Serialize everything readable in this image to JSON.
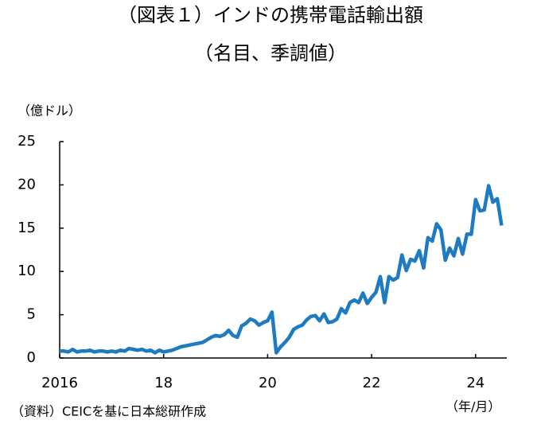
{
  "chart_data": {
    "type": "line",
    "title": "（図表１）インドの携帯電話輸出額",
    "subtitle": "（名目、季調値）",
    "y_label": "（億ドル）",
    "x_label": "（年/月）",
    "source": "（資料）CEICを基に日本総研作成",
    "xlim": [
      2016,
      2024.6
    ],
    "xticks": [
      2016,
      {
        "value": 2018,
        "label": "18"
      },
      {
        "value": 2020,
        "label": "20"
      },
      {
        "value": 2022,
        "label": "22"
      },
      {
        "value": 2024,
        "label": "24"
      }
    ],
    "ylim": [
      0,
      25
    ],
    "yticks": [
      0,
      5,
      10,
      15,
      20,
      25
    ],
    "grid": false,
    "x": [
      2016.0,
      2016.083,
      2016.167,
      2016.25,
      2016.333,
      2016.417,
      2016.5,
      2016.583,
      2016.667,
      2016.75,
      2016.833,
      2016.917,
      2017.0,
      2017.083,
      2017.167,
      2017.25,
      2017.333,
      2017.417,
      2017.5,
      2017.583,
      2017.667,
      2017.75,
      2017.833,
      2017.917,
      2018.0,
      2018.083,
      2018.167,
      2018.25,
      2018.333,
      2018.417,
      2018.5,
      2018.583,
      2018.667,
      2018.75,
      2018.833,
      2018.917,
      2019.0,
      2019.083,
      2019.167,
      2019.25,
      2019.333,
      2019.417,
      2019.5,
      2019.583,
      2019.667,
      2019.75,
      2019.833,
      2019.917,
      2020.0,
      2020.083,
      2020.167,
      2020.25,
      2020.333,
      2020.417,
      2020.5,
      2020.583,
      2020.667,
      2020.75,
      2020.833,
      2020.917,
      2021.0,
      2021.083,
      2021.167,
      2021.25,
      2021.333,
      2021.417,
      2021.5,
      2021.583,
      2021.667,
      2021.75,
      2021.833,
      2021.917,
      2022.0,
      2022.083,
      2022.167,
      2022.25,
      2022.333,
      2022.417,
      2022.5,
      2022.583,
      2022.667,
      2022.75,
      2022.833,
      2022.917,
      2023.0,
      2023.083,
      2023.167,
      2023.25,
      2023.333,
      2023.417,
      2023.5,
      2023.583,
      2023.667,
      2023.75,
      2023.833,
      2023.917,
      2024.0,
      2024.083,
      2024.167,
      2024.25,
      2024.333,
      2024.417,
      2024.5
    ],
    "series": [
      {
        "color": "#1f7bc0",
        "values": [
          0.8,
          0.8,
          0.7,
          1.0,
          0.7,
          0.8,
          0.8,
          0.9,
          0.7,
          0.8,
          0.8,
          0.7,
          0.8,
          0.7,
          0.9,
          0.8,
          1.1,
          1.0,
          0.9,
          1.0,
          0.8,
          0.9,
          0.6,
          0.9,
          0.7,
          0.8,
          0.9,
          1.1,
          1.3,
          1.4,
          1.5,
          1.6,
          1.7,
          1.8,
          2.1,
          2.4,
          2.6,
          2.5,
          2.7,
          3.2,
          2.6,
          2.4,
          3.7,
          4.0,
          4.5,
          4.3,
          3.8,
          4.1,
          4.3,
          5.3,
          0.6,
          1.3,
          1.8,
          2.4,
          3.3,
          3.6,
          3.8,
          4.4,
          4.8,
          4.9,
          4.3,
          5.1,
          4.1,
          4.2,
          4.5,
          5.7,
          5.2,
          6.4,
          6.7,
          6.4,
          7.5,
          6.3,
          7.0,
          7.6,
          9.4,
          6.4,
          9.4,
          9.0,
          9.3,
          11.9,
          10.1,
          11.4,
          11.2,
          12.4,
          10.4,
          13.9,
          13.5,
          15.5,
          14.8,
          11.3,
          12.7,
          11.8,
          13.8,
          12.0,
          14.3,
          14.3,
          18.3,
          17.0,
          17.1,
          19.9,
          18.0,
          18.4,
          15.3
        ]
      }
    ]
  }
}
